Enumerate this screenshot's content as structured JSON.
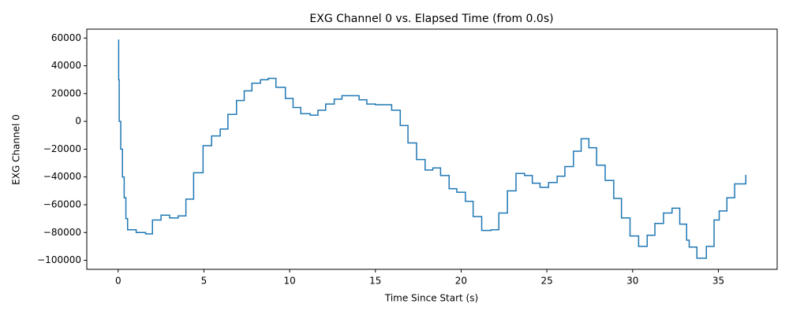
{
  "chart_data": {
    "type": "line",
    "title": "EXG Channel 0 vs. Elapsed Time (from 0.0s)",
    "x_label": "Time Since Start (s)",
    "y_label": "EXG Channel 0",
    "drawstyle": "steps-post",
    "xlim": [
      -1.83,
      38.43
    ],
    "ylim": [
      -106500,
      66400
    ],
    "xticks": [
      0,
      5,
      10,
      15,
      20,
      25,
      30,
      35
    ],
    "yticks": [
      {
        "value": -100000,
        "label": "−100000"
      },
      {
        "value": -80000,
        "label": "−80000"
      },
      {
        "value": -60000,
        "label": "−60000"
      },
      {
        "value": -40000,
        "label": "−40000"
      },
      {
        "value": -20000,
        "label": "−20000"
      },
      0,
      20000,
      40000,
      60000
    ],
    "series": [
      {
        "name": "EXG Channel 0",
        "color": "#1f77b4",
        "x": [
          0,
          0.03,
          0.06,
          0.15,
          0.25,
          0.35,
          0.45,
          0.55,
          1.05,
          1.6,
          2.0,
          2.5,
          3.0,
          3.5,
          3.95,
          4.4,
          4.95,
          5.45,
          5.95,
          6.4,
          6.9,
          7.35,
          7.8,
          8.3,
          8.75,
          9.2,
          9.75,
          10.2,
          10.65,
          11.2,
          11.65,
          12.1,
          12.6,
          13.05,
          14.05,
          14.5,
          15.0,
          15.95,
          16.45,
          16.9,
          17.4,
          17.9,
          18.35,
          18.8,
          19.3,
          19.75,
          20.25,
          20.7,
          21.2,
          21.75,
          22.2,
          22.7,
          23.2,
          23.7,
          24.15,
          24.6,
          25.1,
          25.6,
          26.05,
          26.55,
          27.0,
          27.45,
          27.9,
          28.4,
          28.9,
          29.35,
          29.85,
          30.35,
          30.85,
          31.3,
          31.8,
          32.3,
          32.75,
          33.15,
          33.3,
          33.75,
          34.3,
          34.75,
          35.05,
          35.5,
          35.95,
          36.6
        ],
        "values": [
          58500,
          30000,
          0,
          -20000,
          -40000,
          -55000,
          -70000,
          -78000,
          -80000,
          -81000,
          -71000,
          -67500,
          -69500,
          -68000,
          -56000,
          -37000,
          -17500,
          -10500,
          -5500,
          5000,
          15000,
          22000,
          27500,
          30000,
          31000,
          24500,
          16500,
          10000,
          5500,
          4500,
          8000,
          12500,
          16000,
          18500,
          15500,
          12500,
          12000,
          8000,
          -3000,
          -15500,
          -27500,
          -35000,
          -33500,
          -39000,
          -48500,
          -51000,
          -57500,
          -68500,
          -78500,
          -78000,
          -66000,
          -50000,
          -37500,
          -39000,
          -44500,
          -47500,
          -44000,
          -39500,
          -32500,
          -21500,
          -12500,
          -19000,
          -31500,
          -42500,
          -55500,
          -69500,
          -82500,
          -90000,
          -82000,
          -73500,
          -66000,
          -62500,
          -74000,
          -85500,
          -90500,
          -98500,
          -90000,
          -71000,
          -64500,
          -55000,
          -45000,
          -38500
        ]
      }
    ]
  }
}
